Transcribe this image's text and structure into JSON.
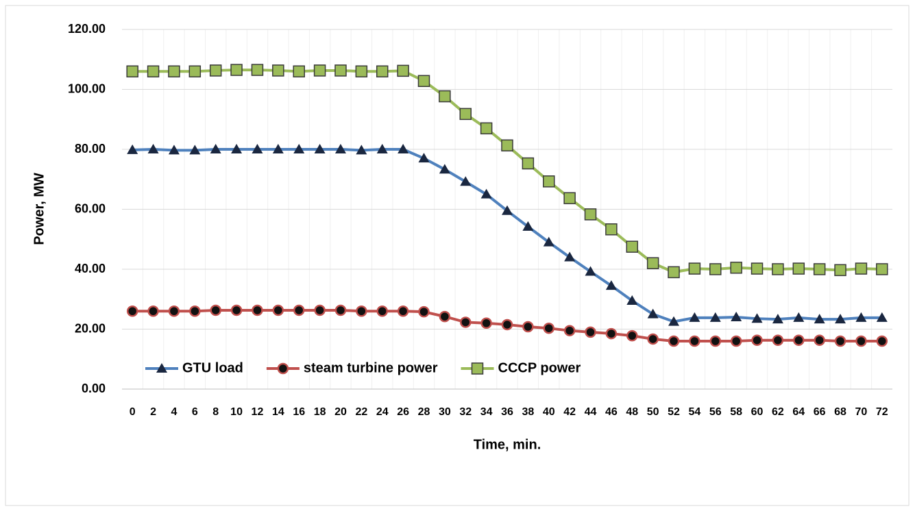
{
  "chart_data": {
    "type": "line",
    "x_label": "Time, min.",
    "y_label": "Power, MW",
    "categories": [
      "0",
      "2",
      "4",
      "6",
      "8",
      "10",
      "12",
      "14",
      "16",
      "18",
      "20",
      "22",
      "24",
      "26",
      "28",
      "30",
      "32",
      "34",
      "36",
      "38",
      "40",
      "42",
      "44",
      "46",
      "48",
      "50",
      "52",
      "54",
      "56",
      "58",
      "60",
      "62",
      "64",
      "66",
      "68",
      "70",
      "72"
    ],
    "series": [
      {
        "name": "GTU load",
        "color": "#4f81bd",
        "marker": "triangle",
        "marker_color": "#1a2740",
        "values": [
          79.8,
          80,
          79.7,
          79.7,
          80,
          80,
          80,
          80,
          80,
          80,
          80,
          79.7,
          80,
          80,
          77,
          73.3,
          69.2,
          65,
          59.5,
          54.2,
          49,
          44,
          39.2,
          34.5,
          29.5,
          25,
          22.5,
          23.8,
          23.8,
          24,
          23.5,
          23.3,
          23.8,
          23.3,
          23.3,
          23.8,
          23.8
        ]
      },
      {
        "name": "steam turbine power",
        "color": "#c0504d",
        "marker": "circle",
        "marker_color": "#111111",
        "values": [
          26,
          26,
          26,
          26,
          26.3,
          26.3,
          26.3,
          26.3,
          26.3,
          26.3,
          26.3,
          26,
          26,
          26,
          25.8,
          24.2,
          22.3,
          22,
          21.5,
          20.8,
          20.3,
          19.5,
          19,
          18.5,
          17.8,
          16.7,
          16,
          16,
          16,
          16,
          16.3,
          16.3,
          16.3,
          16.3,
          16,
          16,
          16
        ]
      },
      {
        "name": "CCCP power",
        "color": "#9bbb59",
        "marker": "square",
        "marker_color": "#9bbb59",
        "values": [
          106,
          106,
          106,
          106,
          106.3,
          106.5,
          106.5,
          106.3,
          106,
          106.3,
          106.3,
          106,
          106,
          106.2,
          102.8,
          97.7,
          91.8,
          87,
          81.3,
          75.3,
          69.3,
          63.7,
          58.3,
          53.3,
          47.5,
          42,
          39,
          40.2,
          40,
          40.5,
          40.2,
          40,
          40.2,
          40,
          39.7,
          40.2,
          40
        ]
      }
    ],
    "ylim": [
      0,
      120
    ],
    "yticks": [
      {
        "value": 0,
        "label": "0.00"
      },
      {
        "value": 20,
        "label": "20.00"
      },
      {
        "value": 40,
        "label": "40.00"
      },
      {
        "value": 60,
        "label": "60.00"
      },
      {
        "value": 80,
        "label": "80.00"
      },
      {
        "value": 100,
        "label": "100.00"
      },
      {
        "value": 120,
        "label": "120.00"
      }
    ],
    "grid": true,
    "legend": "lower left"
  }
}
